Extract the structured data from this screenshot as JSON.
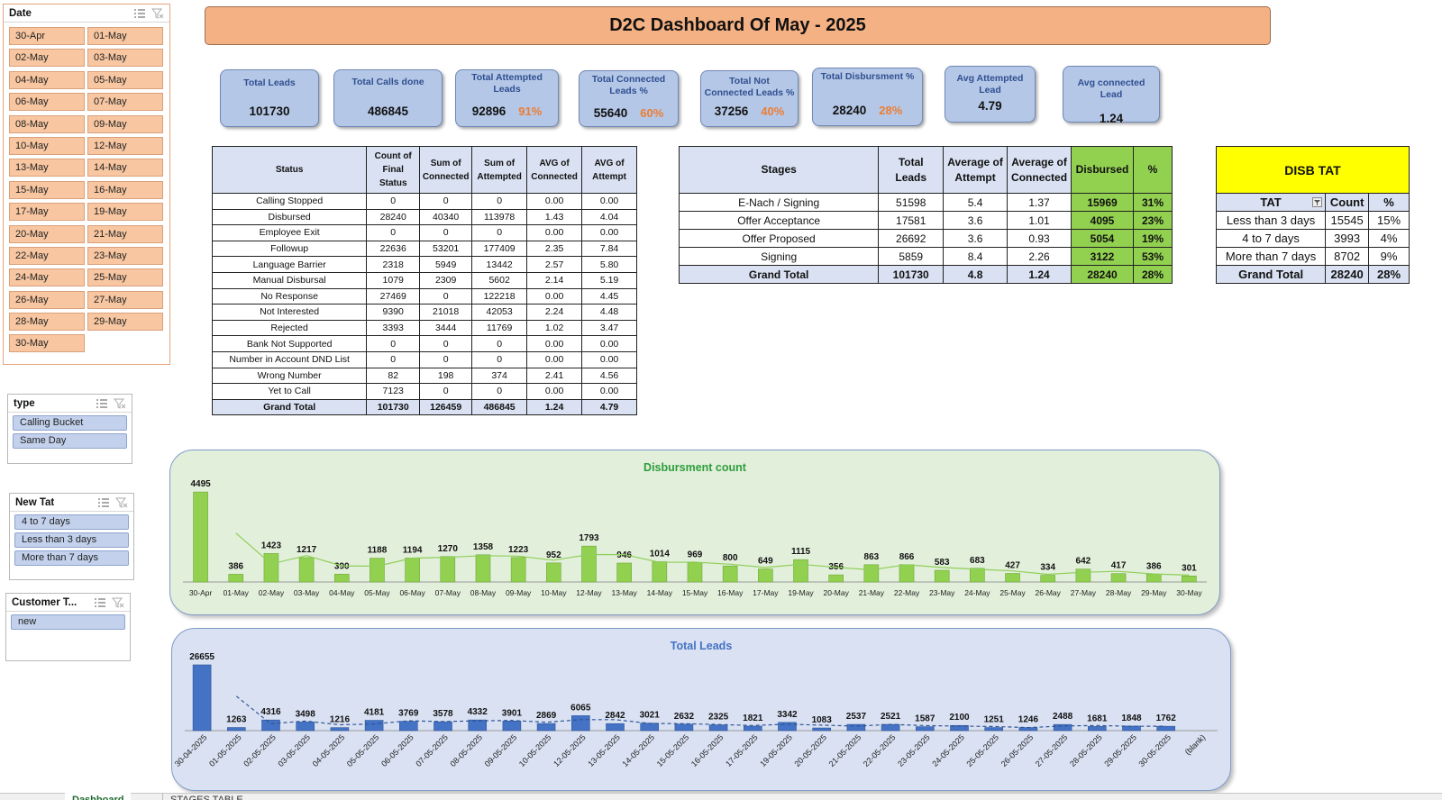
{
  "title": "D2C Dashboard Of May - 2025",
  "slicers": {
    "date": {
      "title": "Date",
      "items": [
        "30-Apr",
        "01-May",
        "02-May",
        "03-May",
        "04-May",
        "05-May",
        "06-May",
        "07-May",
        "08-May",
        "09-May",
        "10-May",
        "12-May",
        "13-May",
        "14-May",
        "15-May",
        "16-May",
        "17-May",
        "19-May",
        "20-May",
        "21-May",
        "22-May",
        "23-May",
        "24-May",
        "25-May",
        "26-May",
        "27-May",
        "28-May",
        "29-May",
        "30-May"
      ]
    },
    "type": {
      "title": "type",
      "items": [
        "Calling Bucket",
        "Same Day"
      ]
    },
    "new_tat": {
      "title": "New Tat",
      "items": [
        "4 to 7 days",
        "Less than 3 days",
        "More than 7 days"
      ]
    },
    "customer_type": {
      "title": "Customer T...",
      "items": [
        "new"
      ]
    }
  },
  "kpis": {
    "total_leads": {
      "label": "Total Leads",
      "value": "101730"
    },
    "total_calls": {
      "label": "Total Calls done",
      "value": "486845"
    },
    "total_attempted": {
      "label": "Total Attempted Leads",
      "value": "92896",
      "pct": "91%"
    },
    "total_connected": {
      "label": "Total Connected Leads %",
      "value": "55640",
      "pct": "60%"
    },
    "total_not_connected": {
      "label": "Total Not Connected Leads %",
      "value": "37256",
      "pct": "40%"
    },
    "total_disbursment": {
      "label": "Total Disbursment %",
      "value": "28240",
      "pct": "28%"
    },
    "avg_attempted": {
      "label": "Avg Attempted Lead",
      "value": "4.79"
    },
    "avg_connected": {
      "label": "Avg connected Lead",
      "value": "1.24"
    }
  },
  "status_table": {
    "headers": [
      "Status",
      "Count of Final Status",
      "Sum of Connected",
      "Sum of Attempted",
      "AVG of Connected",
      "AVG of Attempt"
    ],
    "rows": [
      [
        "Calling Stopped",
        "0",
        "0",
        "0",
        "0.00",
        "0.00"
      ],
      [
        "Disbursed",
        "28240",
        "40340",
        "113978",
        "1.43",
        "4.04"
      ],
      [
        "Employee Exit",
        "0",
        "0",
        "0",
        "0.00",
        "0.00"
      ],
      [
        "Followup",
        "22636",
        "53201",
        "177409",
        "2.35",
        "7.84"
      ],
      [
        "Language Barrier",
        "2318",
        "5949",
        "13442",
        "2.57",
        "5.80"
      ],
      [
        "Manual Disbursal",
        "1079",
        "2309",
        "5602",
        "2.14",
        "5.19"
      ],
      [
        "No Response",
        "27469",
        "0",
        "122218",
        "0.00",
        "4.45"
      ],
      [
        "Not Interested",
        "9390",
        "21018",
        "42053",
        "2.24",
        "4.48"
      ],
      [
        "Rejected",
        "3393",
        "3444",
        "11769",
        "1.02",
        "3.47"
      ],
      [
        "Bank Not Supported",
        "0",
        "0",
        "0",
        "0.00",
        "0.00"
      ],
      [
        "Number in Account DND List",
        "0",
        "0",
        "0",
        "0.00",
        "0.00"
      ],
      [
        "Wrong Number",
        "82",
        "198",
        "374",
        "2.41",
        "4.56"
      ],
      [
        "Yet to Call",
        "7123",
        "0",
        "0",
        "0.00",
        "0.00"
      ]
    ],
    "total": [
      "Grand Total",
      "101730",
      "126459",
      "486845",
      "1.24",
      "4.79"
    ]
  },
  "stages_table": {
    "headers": [
      "Stages",
      "Total Leads",
      "Average of Attempt",
      "Average of Connected",
      "Disbursed",
      "%"
    ],
    "rows": [
      [
        "E-Nach / Signing",
        "51598",
        "5.4",
        "1.37",
        "15969",
        "31%"
      ],
      [
        "Offer Acceptance",
        "17581",
        "3.6",
        "1.01",
        "4095",
        "23%"
      ],
      [
        "Offer Proposed",
        "26692",
        "3.6",
        "0.93",
        "5054",
        "19%"
      ],
      [
        "Signing",
        "5859",
        "8.4",
        "2.26",
        "3122",
        "53%"
      ]
    ],
    "total": [
      "Grand Total",
      "101730",
      "4.8",
      "1.24",
      "28240",
      "28%"
    ]
  },
  "tat_table": {
    "title": "DISB TAT",
    "headers": [
      "TAT",
      "Count",
      "%"
    ],
    "rows": [
      [
        "Less than 3 days",
        "15545",
        "15%"
      ],
      [
        "4 to 7 days",
        "3993",
        "4%"
      ],
      [
        "More than 7 days",
        "8702",
        "9%"
      ]
    ],
    "total": [
      "Grand Total",
      "28240",
      "28%"
    ]
  },
  "colors": {
    "title_bg": "#f4b183",
    "kpi_bg": "#b4c7e7",
    "pct_orange": "#ed7d31",
    "green_bar": "#92d050",
    "blue_bar": "#4472c4",
    "disb_chart_bg": "#e2efda",
    "leads_chart_bg": "#d9e1f2"
  },
  "chart_data": [
    {
      "type": "bar",
      "title": "Disbursment count",
      "categories": [
        "30-Apr",
        "01-May",
        "02-May",
        "03-May",
        "04-May",
        "05-May",
        "06-May",
        "07-May",
        "08-May",
        "09-May",
        "10-May",
        "12-May",
        "13-May",
        "14-May",
        "15-May",
        "16-May",
        "17-May",
        "19-May",
        "20-May",
        "21-May",
        "22-May",
        "23-May",
        "24-May",
        "25-May",
        "26-May",
        "27-May",
        "28-May",
        "29-May",
        "30-May"
      ],
      "values": [
        4495,
        386,
        1423,
        1217,
        390,
        1188,
        1194,
        1270,
        1358,
        1223,
        952,
        1793,
        946,
        1014,
        969,
        800,
        649,
        1115,
        356,
        863,
        866,
        583,
        683,
        427,
        334,
        642,
        417,
        386,
        301
      ],
      "trendline": "moving-average",
      "ylim": [
        0,
        4500
      ],
      "grid": false,
      "legend": "none"
    },
    {
      "type": "bar",
      "title": "Total Leads",
      "categories": [
        "30-04-2025",
        "01-05-2025",
        "02-05-2025",
        "03-05-2025",
        "04-05-2025",
        "05-05-2025",
        "06-05-2025",
        "07-05-2025",
        "08-05-2025",
        "09-05-2025",
        "10-05-2025",
        "12-05-2025",
        "13-05-2025",
        "14-05-2025",
        "15-05-2025",
        "16-05-2025",
        "17-05-2025",
        "19-05-2025",
        "20-05-2025",
        "21-05-2025",
        "22-05-2025",
        "23-05-2025",
        "24-05-2025",
        "25-05-2025",
        "26-05-2025",
        "27-05-2025",
        "28-05-2025",
        "29-05-2025",
        "30-05-2025",
        "(blank)"
      ],
      "values": [
        26655,
        1263,
        4316,
        3498,
        1216,
        4181,
        3769,
        3578,
        4332,
        3901,
        2869,
        6065,
        2842,
        3021,
        2632,
        2325,
        1821,
        3342,
        1083,
        2537,
        2521,
        1587,
        2100,
        1251,
        1246,
        2488,
        1681,
        1848,
        1762,
        null
      ],
      "trendline": "moving-average",
      "ylim": [
        0,
        26655
      ],
      "grid": false,
      "legend": "none"
    }
  ],
  "sheet_tabs": [
    "Dashboard",
    "STAGES TABLE"
  ]
}
